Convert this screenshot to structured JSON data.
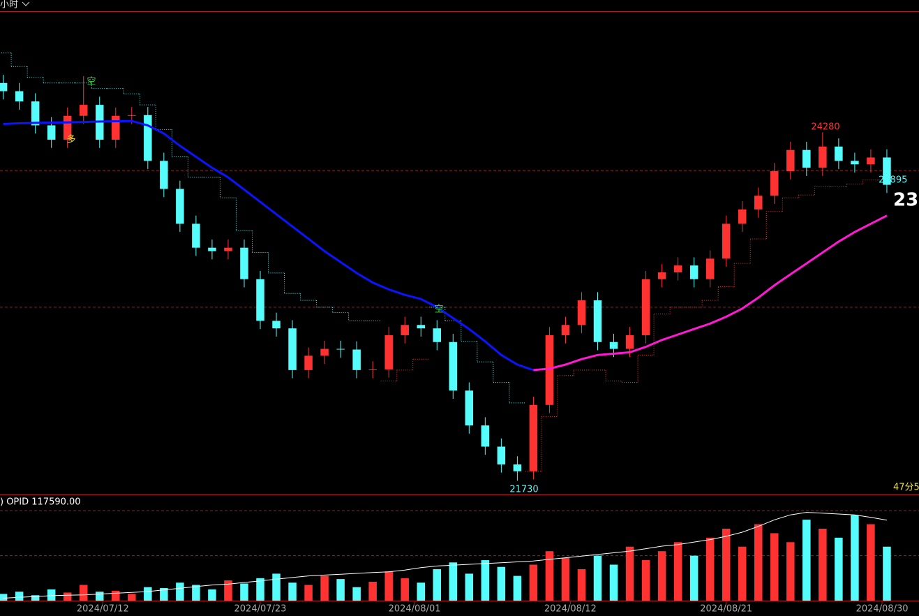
{
  "chart_data": {
    "type": "candlestick",
    "timeframe": "小时",
    "xlim": [
      -0.2,
      57
    ],
    "xticks": [
      {
        "value": 6.2,
        "label": "2024/07/12"
      },
      {
        "value": 16,
        "label": "2024/07/23"
      },
      {
        "value": 25.6,
        "label": "2024/08/01"
      },
      {
        "value": 35.3,
        "label": "2024/08/12"
      },
      {
        "value": 45,
        "label": "2024/08/21"
      },
      {
        "value": 54.7,
        "label": "2024/08/30"
      }
    ],
    "ylim": [
      21630,
      25160
    ],
    "yticks": [
      23000,
      24000
    ],
    "grid": true,
    "up_color": "#ff3232",
    "down_color": "#54fcfc",
    "open": [
      24640,
      24580,
      24505,
      24330,
      24225,
      24400,
      24480,
      24225,
      24400,
      24405,
      24070,
      23865,
      23610,
      23435,
      23410,
      23435,
      23205,
      22900,
      22845,
      22540,
      22645,
      22695,
      22690,
      22540,
      22545,
      22795,
      22870,
      22845,
      22745,
      22390,
      22135,
      21980,
      21850,
      21800,
      22285,
      22795,
      22870,
      23050,
      22745,
      22695,
      22795,
      23205,
      23255,
      23305,
      23205,
      23355,
      23610,
      23715,
      23815,
      23995,
      24150,
      24020,
      24175,
      24070,
      24045,
      24095
    ],
    "high": [
      24700,
      24640,
      24565,
      24390,
      24460,
      24690,
      24540,
      24460,
      24465,
      24465,
      24130,
      23925,
      23670,
      23495,
      23495,
      23495,
      23265,
      22960,
      22905,
      22705,
      22755,
      22755,
      22750,
      22605,
      22855,
      22930,
      22930,
      22905,
      22805,
      22450,
      22195,
      22040,
      21910,
      22345,
      22855,
      22930,
      23110,
      23110,
      22805,
      22855,
      23265,
      23315,
      23365,
      23365,
      23415,
      23670,
      23775,
      23875,
      24055,
      24210,
      24210,
      24280,
      24235,
      24130,
      24155,
      24155
    ],
    "low": [
      24520,
      24445,
      24270,
      24165,
      24165,
      24340,
      24165,
      24165,
      24340,
      24010,
      23805,
      23550,
      23375,
      23350,
      23350,
      23145,
      22840,
      22785,
      22480,
      22480,
      22585,
      22630,
      22480,
      22480,
      22485,
      22735,
      22785,
      22685,
      22330,
      22075,
      21920,
      21790,
      21730,
      21740,
      22225,
      22735,
      22810,
      22685,
      22635,
      22635,
      22735,
      23145,
      23195,
      23145,
      23145,
      23295,
      23550,
      23655,
      23755,
      23935,
      23960,
      23960,
      24010,
      23985,
      23985,
      23835
    ],
    "close": [
      24580,
      24505,
      24330,
      24225,
      24400,
      24480,
      24225,
      24400,
      24405,
      24070,
      23865,
      23610,
      23435,
      23410,
      23435,
      23205,
      22900,
      22845,
      22540,
      22645,
      22695,
      22690,
      22540,
      22545,
      22795,
      22870,
      22845,
      22745,
      22390,
      22135,
      21980,
      21850,
      21800,
      22285,
      22795,
      22870,
      23050,
      22745,
      22695,
      22795,
      23205,
      23255,
      23305,
      23205,
      23355,
      23610,
      23715,
      23815,
      23995,
      24150,
      24020,
      24175,
      24070,
      24045,
      24095,
      23895
    ],
    "lines": [
      {
        "color": "#0a14ff",
        "values": [
          24340,
          24345,
          24348,
          24350,
          24352,
          24355,
          24358,
          24360,
          24362,
          24330,
          24270,
          24180,
          24100,
          24020,
          23950,
          23860,
          23770,
          23680,
          23590,
          23500,
          23410,
          23330,
          23250,
          23180,
          23130,
          23090,
          23060,
          23000,
          22920,
          22840,
          22750,
          22650,
          22580,
          22540,
          null,
          null,
          null,
          null,
          null,
          null,
          null,
          null,
          null,
          null,
          null,
          null,
          null,
          null,
          null,
          null,
          null,
          null,
          null,
          null,
          null,
          null
        ]
      },
      {
        "color": "#ff19d2",
        "values": [
          null,
          null,
          null,
          null,
          null,
          null,
          null,
          null,
          null,
          null,
          null,
          null,
          null,
          null,
          null,
          null,
          null,
          null,
          null,
          null,
          null,
          null,
          null,
          null,
          null,
          null,
          null,
          null,
          null,
          null,
          null,
          null,
          null,
          22540,
          22550,
          22580,
          22620,
          22650,
          22660,
          22670,
          22710,
          22760,
          22800,
          22840,
          22880,
          22930,
          22990,
          23070,
          23160,
          23240,
          23320,
          23400,
          23480,
          23550,
          23610,
          23670
        ]
      }
    ],
    "stops": [
      {
        "color": "#54fcfc",
        "values": [
          24860,
          24760,
          24680,
          24640,
          24640,
          24640,
          24600,
          24600,
          24560,
          24480,
          24300,
          24100,
          23950,
          23950,
          23800,
          23560,
          23400,
          23250,
          23100,
          23050,
          23000,
          22960,
          22900,
          22900,
          null,
          null,
          null,
          23000,
          22900,
          22750,
          22600,
          22450,
          22300,
          null,
          null,
          null,
          null,
          null,
          null,
          null,
          null,
          null,
          null,
          null,
          null,
          null,
          null,
          null,
          null,
          null,
          null,
          null,
          null,
          null,
          null,
          null
        ]
      },
      {
        "color": "#ff3232",
        "values": [
          null,
          null,
          null,
          null,
          null,
          null,
          null,
          null,
          null,
          null,
          null,
          null,
          null,
          null,
          null,
          null,
          null,
          null,
          null,
          null,
          null,
          null,
          null,
          null,
          22460,
          22540,
          22620,
          null,
          null,
          null,
          null,
          null,
          null,
          21800,
          22200,
          22500,
          22540,
          22540,
          22460,
          22450,
          22650,
          22950,
          23000,
          23000,
          23050,
          23150,
          23320,
          23500,
          23700,
          23800,
          23820,
          23880,
          23880,
          23900,
          23930,
          23930
        ]
      }
    ],
    "signals": [
      "空",
      "多",
      "空"
    ],
    "countdown": "47分5",
    "volume": {
      "label": ") OPID 117590.00",
      "ylim": [
        0,
        23300
      ],
      "yticks": [
        10000,
        20000
      ],
      "values": [
        1500,
        2000,
        1200,
        2500,
        1800,
        3500,
        2000,
        2200,
        1500,
        3000,
        2800,
        4000,
        3500,
        2500,
        4500,
        3800,
        5000,
        6000,
        4000,
        3500,
        5500,
        4800,
        3000,
        4200,
        6500,
        5000,
        4000,
        7000,
        8500,
        6000,
        9000,
        7500,
        5500,
        8000,
        11000,
        9500,
        7000,
        10000,
        8000,
        12000,
        9000,
        11000,
        13000,
        10000,
        14000,
        16000,
        12000,
        17000,
        15000,
        13000,
        18000,
        16000,
        14000,
        19000,
        17000,
        12000
      ],
      "y2lim": [
        20000,
        147000
      ],
      "oi": [
        23000,
        24000,
        25000,
        26000,
        26500,
        27000,
        28000,
        29000,
        30000,
        31000,
        33000,
        35000,
        37000,
        39000,
        40000,
        42000,
        44000,
        46000,
        48000,
        50000,
        51000,
        52000,
        53000,
        54000,
        55000,
        57000,
        60000,
        62000,
        63000,
        64000,
        65000,
        66000,
        67000,
        68000,
        70000,
        72000,
        74000,
        76000,
        78000,
        80000,
        83000,
        86000,
        88000,
        91000,
        94000,
        98000,
        103000,
        110000,
        118000,
        124000,
        127000,
        126000,
        125000,
        124000,
        121000,
        117590
      ],
      "oi_color": "#ffffff"
    }
  }
}
